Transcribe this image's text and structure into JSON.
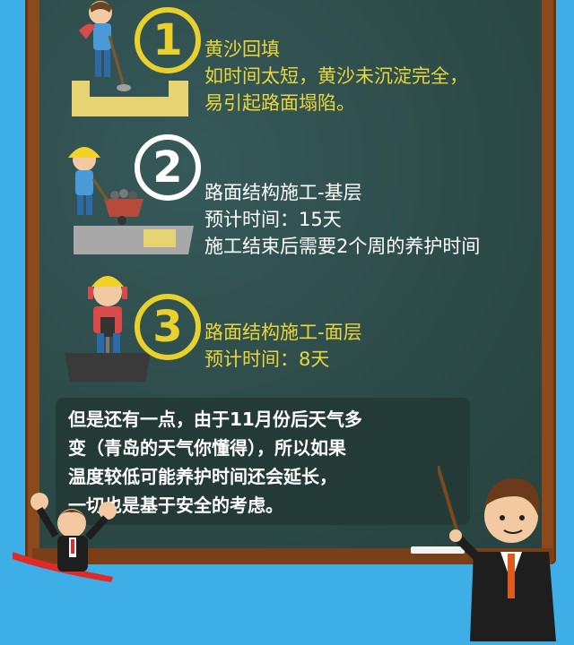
{
  "steps": [
    {
      "number": "1",
      "lines": [
        "黄沙回填",
        "如时间太短，黄沙未沉淀完全，",
        "易引起路面塌陷。"
      ]
    },
    {
      "number": "2",
      "lines": [
        "路面结构施工-基层",
        "预计时间：15天",
        "施工结束后需要2个周的养护时间"
      ]
    },
    {
      "number": "3",
      "lines": [
        "路面结构施工-面层",
        "预计时间：8天"
      ]
    }
  ],
  "note": {
    "lines": [
      "但是还有一点，由于11月份后天气多",
      "变（青岛的天气你懂得），所以如果",
      "温度较低可能养护时间还会延长，",
      "一切也是基于安全的考虑。"
    ]
  },
  "colors": {
    "yellow": "#ead63a",
    "board": "#2f4f4b",
    "background": "#3eaee6",
    "frame": "#8a4a1e"
  }
}
